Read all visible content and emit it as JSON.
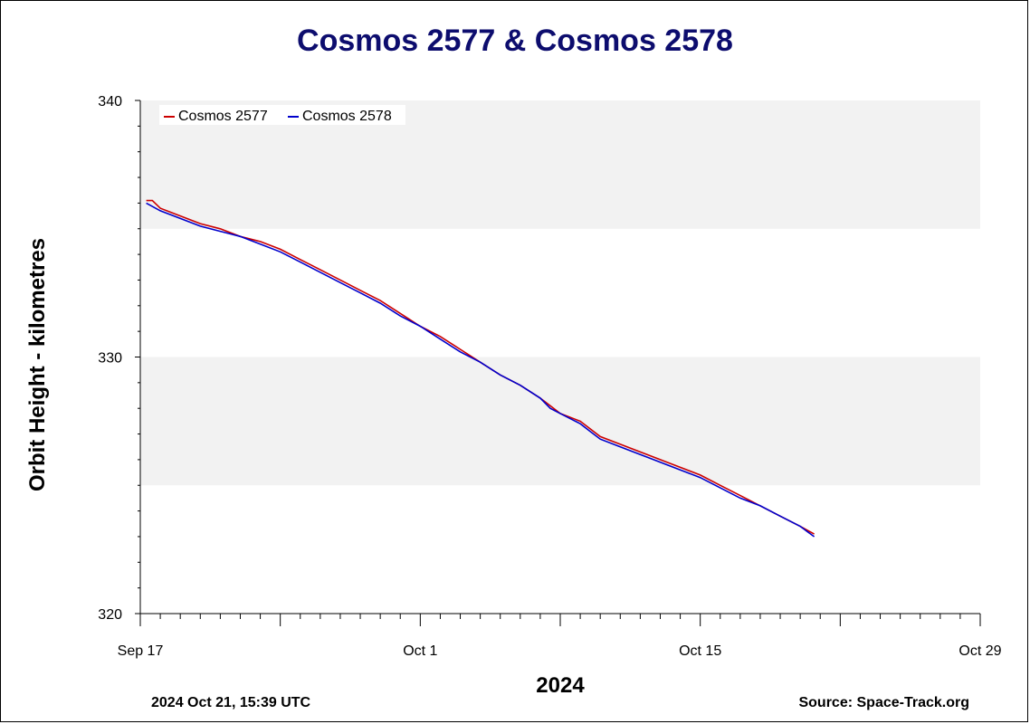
{
  "chart_data": {
    "type": "line",
    "title": "Cosmos 2577 & Cosmos 2578",
    "xlabel": "2024",
    "ylabel": "Orbit Height - kilometres",
    "x_ticks": [
      "Sep 17",
      "Oct 1",
      "Oct 15",
      "Oct 29"
    ],
    "y_ticks": [
      320,
      330,
      340
    ],
    "xlim": [
      "Sep 17",
      "Oct 29"
    ],
    "ylim": [
      320,
      340
    ],
    "grid": "alternating horizontal bands every 5 km",
    "legend": "top-left",
    "series": [
      {
        "name": "Cosmos 2577",
        "color": "#cc0000",
        "x": [
          "Sep 17.3",
          "Sep 17.6",
          "Sep 18",
          "Sep 19",
          "Sep 20",
          "Sep 21",
          "Sep 22",
          "Sep 23",
          "Sep 24",
          "Sep 25",
          "Sep 26",
          "Sep 27",
          "Sep 28",
          "Sep 29",
          "Sep 30",
          "Oct 1",
          "Oct 2",
          "Oct 3",
          "Oct 4",
          "Oct 5",
          "Oct 6",
          "Oct 7",
          "Oct 7.5",
          "Oct 8",
          "Oct 9",
          "Oct 9.5",
          "Oct 10",
          "Oct 11",
          "Oct 12",
          "Oct 13",
          "Oct 14",
          "Oct 15",
          "Oct 16",
          "Oct 17",
          "Oct 18",
          "Oct 19",
          "Oct 20",
          "Oct 20.7"
        ],
        "y": [
          336.1,
          336.1,
          335.8,
          335.5,
          335.2,
          335.0,
          334.7,
          334.5,
          334.2,
          333.8,
          333.4,
          333.0,
          332.6,
          332.2,
          331.7,
          331.2,
          330.8,
          330.3,
          329.8,
          329.3,
          328.9,
          328.4,
          328.1,
          327.8,
          327.5,
          327.2,
          326.9,
          326.6,
          326.3,
          326.0,
          325.7,
          325.4,
          325.0,
          324.6,
          324.2,
          323.8,
          323.4,
          323.1
        ]
      },
      {
        "name": "Cosmos 2578",
        "color": "#0000cc",
        "x": [
          "Sep 17.3",
          "Sep 18",
          "Sep 19",
          "Sep 20",
          "Sep 21",
          "Sep 22",
          "Sep 23",
          "Sep 24",
          "Sep 25",
          "Sep 26",
          "Sep 27",
          "Sep 28",
          "Sep 29",
          "Sep 30",
          "Oct 1",
          "Oct 2",
          "Oct 3",
          "Oct 4",
          "Oct 5",
          "Oct 6",
          "Oct 7",
          "Oct 7.5",
          "Oct 8",
          "Oct 9",
          "Oct 9.5",
          "Oct 10",
          "Oct 11",
          "Oct 12",
          "Oct 13",
          "Oct 14",
          "Oct 15",
          "Oct 16",
          "Oct 17",
          "Oct 18",
          "Oct 19",
          "Oct 20",
          "Oct 20.7"
        ],
        "y": [
          336.0,
          335.7,
          335.4,
          335.1,
          334.9,
          334.7,
          334.4,
          334.1,
          333.7,
          333.3,
          332.9,
          332.5,
          332.1,
          331.6,
          331.2,
          330.7,
          330.2,
          329.8,
          329.3,
          328.9,
          328.4,
          328.0,
          327.8,
          327.4,
          327.1,
          326.8,
          326.5,
          326.2,
          325.9,
          325.6,
          325.3,
          324.9,
          324.5,
          324.2,
          323.8,
          323.4,
          323.0
        ]
      }
    ]
  },
  "footer": {
    "timestamp": "2024 Oct 21, 15:39 UTC",
    "source": "Source: Space-Track.org"
  }
}
